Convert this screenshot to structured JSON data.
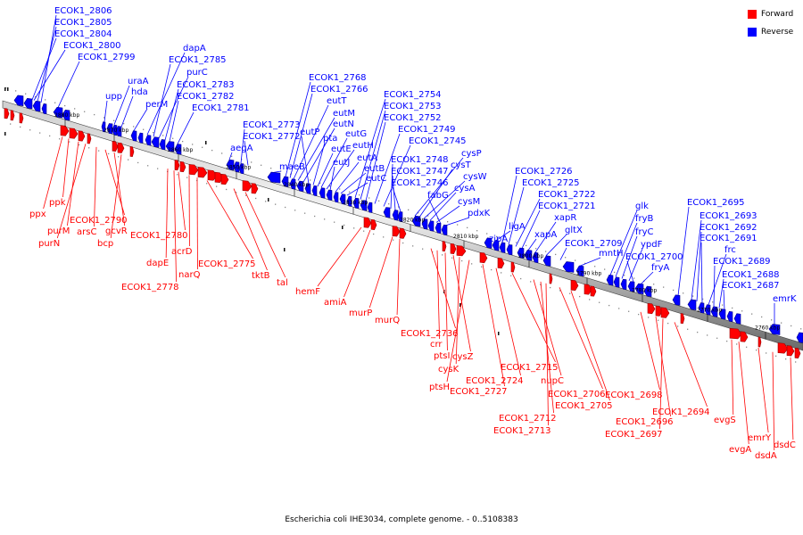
{
  "legend": {
    "forward": {
      "label": "Forward",
      "color": "#ff0000"
    },
    "reverse": {
      "label": "Reverse",
      "color": "#0000ff"
    }
  },
  "caption": "Escherichia coli IHE3034, complete genome. - 0..5108383",
  "axis": {
    "ticks": [
      "2880 kbp",
      "2870 kbp",
      "2860 kbp",
      "2850 kbp",
      "2840 kbp",
      "2830 kbp",
      "2820 kbp",
      "2810 kbp",
      "2800 kbp",
      "2790 kbp",
      "2780 kbp",
      "2770 kbp",
      "2760 kbp"
    ]
  },
  "forward_genes": [
    "ppx",
    "ppk",
    "purM",
    "purN",
    "arsC",
    "ECOK1_2790",
    "gcvR",
    "bcp",
    "ECOK1_2780",
    "dapE",
    "acrD",
    "ECOK1_2778",
    "narQ",
    "ECOK1_2775",
    "tktB",
    "tal",
    "hemF",
    "amiA",
    "murP",
    "murQ",
    "ECOK1_2736",
    "crr",
    "ptsI",
    "cysZ",
    "cysK",
    "ptsH",
    "ECOK1_2727",
    "ECOK1_2724",
    "ECOK1_2715",
    "nupC",
    "ECOK1_2706",
    "ECOK1_2705",
    "ECOK1_2712",
    "ECOK1_2713",
    "ECOK1_2698",
    "ECOK1_2696",
    "ECOK1_2697",
    "ECOK1_2694",
    "evgS",
    "evgA",
    "emrY",
    "dsdA",
    "dsdC"
  ],
  "reverse_genes": [
    "ECOK1_2806",
    "ECOK1_2805",
    "ECOK1_2804",
    "ECOK1_2800",
    "ECOK1_2799",
    "upp",
    "uraA",
    "hda",
    "perM",
    "dapA",
    "ECOK1_2785",
    "purC",
    "ECOK1_2783",
    "ECOK1_2782",
    "ECOK1_2781",
    "aegA",
    "ECOK1_2773",
    "ECOK1_2772",
    "maeB",
    "ECOK1_2768",
    "ECOK1_2766",
    "eutT",
    "eutM",
    "eutN",
    "eutP",
    "pta",
    "eutE",
    "eutG",
    "eutH",
    "eutJ",
    "eutA",
    "eutB",
    "eutC",
    "ECOK1_2754",
    "ECOK1_2753",
    "ECOK1_2752",
    "ECOK1_2749",
    "ECOK1_2745",
    "ECOK1_2748",
    "ECOK1_2747",
    "ECOK1_2746",
    "cysP",
    "cysT",
    "cysW",
    "cysA",
    "cysM",
    "fabG",
    "pdxK",
    "zipA",
    "ligA",
    "ECOK1_2726",
    "ECOK1_2725",
    "ECOK1_2722",
    "ECOK1_2721",
    "xapA",
    "xapR",
    "gltX",
    "ECOK1_2709",
    "mntH",
    "glk",
    "fryB",
    "fryC",
    "ypdF",
    "ECOK1_2700",
    "fryA",
    "ECOK1_2695",
    "ECOK1_2693",
    "ECOK1_2692",
    "ECOK1_2691",
    "frc",
    "ECOK1_2689",
    "ECOK1_2688",
    "ECOK1_2687",
    "emrK"
  ]
}
